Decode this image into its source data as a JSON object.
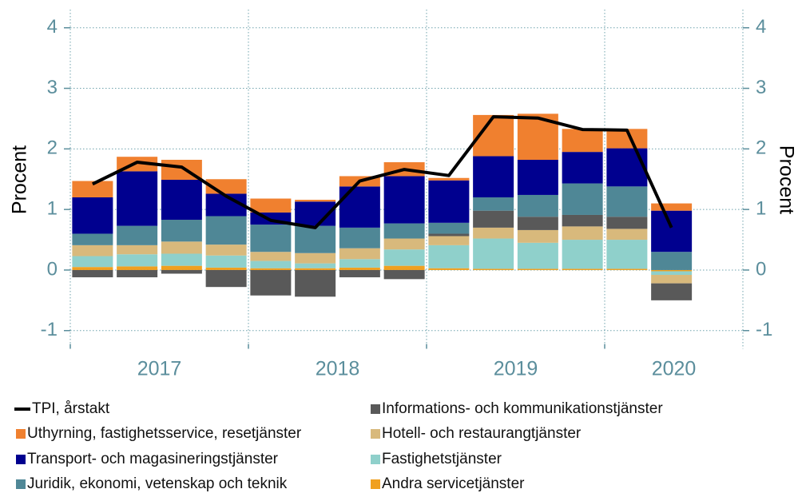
{
  "chart_data": {
    "type": "bar",
    "y_label": "Procent",
    "y2_label": "Procent",
    "categories": [
      null,
      null,
      null,
      null,
      null,
      null,
      null,
      null,
      null,
      null,
      null,
      null,
      null,
      null
    ],
    "x_groups": [
      "2017",
      "2018",
      "2019",
      "2020"
    ],
    "ylim": [
      -1.3,
      4.3
    ],
    "yticks": [
      -1,
      0,
      1,
      2,
      3,
      4
    ],
    "y2lim": [
      -1.3,
      4.3
    ],
    "y2ticks": [
      -1,
      0,
      1,
      2,
      3,
      4
    ],
    "grid": true,
    "stacked": true,
    "series": [
      {
        "name": "TPI, årstakt",
        "type": "line",
        "color": "#000000",
        "values": [
          1.42,
          1.78,
          1.7,
          1.22,
          0.82,
          0.7,
          1.47,
          1.66,
          1.56,
          2.53,
          2.51,
          2.32,
          2.31,
          0.7
        ]
      },
      {
        "name": "Uthyrning, fastighetsservice, resetjänster",
        "color": "#f0802f",
        "values": [
          0.27,
          0.24,
          0.33,
          0.24,
          0.23,
          0.03,
          0.17,
          0.23,
          0.04,
          0.68,
          0.76,
          0.38,
          0.32,
          0.12
        ]
      },
      {
        "name": "Transport- och magasineringstjänster",
        "color": "#00008f",
        "values": [
          0.6,
          0.9,
          0.66,
          0.37,
          0.2,
          0.4,
          0.68,
          0.78,
          0.7,
          0.68,
          0.58,
          0.52,
          0.63,
          0.68
        ]
      },
      {
        "name": "Juridik, ekonomi, vetenskap och teknik",
        "color": "#4f8796",
        "values": [
          0.19,
          0.32,
          0.36,
          0.47,
          0.45,
          0.45,
          0.34,
          0.25,
          0.18,
          0.22,
          0.36,
          0.52,
          0.5,
          0.3
        ]
      },
      {
        "name": "Informations- och kommunikationstjänster",
        "color": "#595959",
        "values": [
          -0.12,
          -0.12,
          -0.06,
          -0.28,
          -0.42,
          -0.44,
          -0.12,
          -0.15,
          0.04,
          0.28,
          0.22,
          0.19,
          0.2,
          -0.28
        ]
      },
      {
        "name": "Hotell- och restaurangtjänster",
        "color": "#d8b97c",
        "values": [
          0.18,
          0.15,
          0.2,
          0.18,
          0.15,
          0.17,
          0.18,
          0.18,
          0.15,
          0.18,
          0.21,
          0.22,
          0.18,
          -0.14
        ]
      },
      {
        "name": "Fastighetstjänster",
        "color": "#8fd0cb",
        "values": [
          0.18,
          0.2,
          0.2,
          0.2,
          0.12,
          0.08,
          0.14,
          0.27,
          0.38,
          0.5,
          0.43,
          0.48,
          0.48,
          -0.06
        ]
      },
      {
        "name": "Andra servicetjänster",
        "color": "#f0a020",
        "values": [
          0.05,
          0.06,
          0.07,
          0.04,
          0.03,
          0.03,
          0.04,
          0.07,
          0.03,
          0.02,
          0.02,
          0.02,
          0.02,
          -0.02
        ]
      }
    ]
  }
}
